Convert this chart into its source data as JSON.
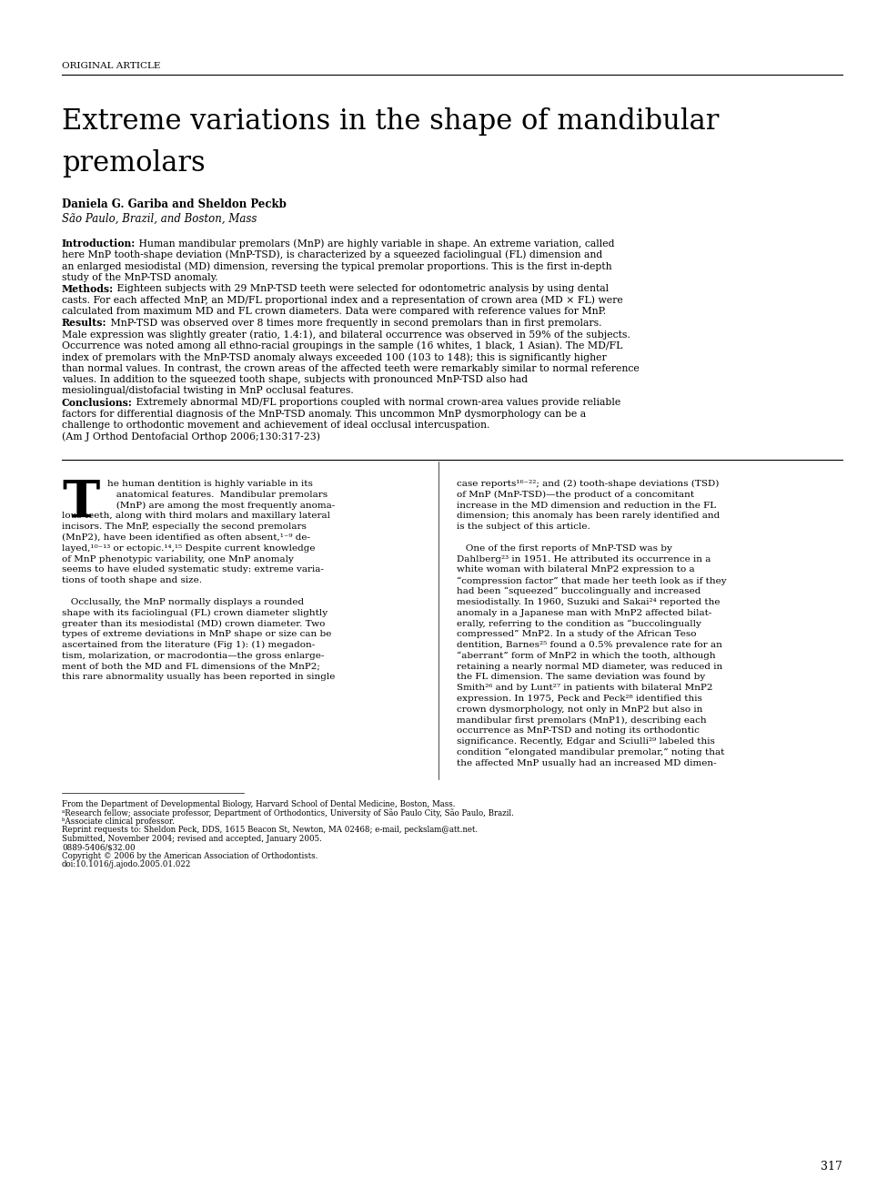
{
  "background_color": "#ffffff",
  "page_label": "ORIGINAL ARTICLE",
  "title_line1": "Extreme variations in the shape of mandibular",
  "title_line2": "premolars",
  "authors_bold": "Daniela G. Garib",
  "authors_super_a": "a",
  "authors_mid": " and Sheldon Peck",
  "authors_super_b": "b",
  "affiliation": "São Paulo, Brazil, and Boston, Mass",
  "abstract_intro_label": "Introduction:",
  "abstract_intro": "Human mandibular premolars (MnP) are highly variable in shape. An extreme variation, called here MnP tooth-shape deviation (MnP-TSD), is characterized by a squeezed faciolingual (FL) dimension and an enlarged mesiodistal (MD) dimension, reversing the typical premolar proportions. This is the first in-depth study of the MnP-TSD anomaly.",
  "abstract_methods_label": "Methods:",
  "abstract_methods": "Eighteen subjects with 29 MnP-TSD teeth were selected for odontometric analysis by using dental casts. For each affected MnP, an MD/FL proportional index and a representation of crown area (MD × FL) were calculated from maximum MD and FL crown diameters. Data were compared with reference values for MnP.",
  "abstract_results_label": "Results:",
  "abstract_results": "MnP-TSD was observed over 8 times more frequently in second premolars than in first premolars. Male expression was slightly greater (ratio, 1.4:1), and bilateral occurrence was observed in 59% of the subjects. Occurrence was noted among all ethno-racial groupings in the sample (16 whites, 1 black, 1 Asian). The MD/FL index of premolars with the MnP-TSD anomaly always exceeded 100 (103 to 148); this is significantly higher than normal values. In contrast, the crown areas of the affected teeth were remarkably similar to normal reference values. In addition to the squeezed tooth shape, subjects with pronounced MnP-TSD also had mesiolingual/distofacial twisting in MnP occlusal features.",
  "abstract_conclusions_label": "Conclusions:",
  "abstract_conclusions": "Extremely abnormal MD/FL proportions coupled with normal crown-area values provide reliable factors for differential diagnosis of the MnP-TSD anomaly. This uncommon MnP dysmorphology can be a challenge to orthodontic movement and achievement of ideal occlusal intercuspation. (Am J Orthod Dentofacial Orthop 2006;130:317-23)",
  "col1_lines": [
    "he human dentition is highly variable in its",
    "   anatomical features.  Mandibular premolars",
    "   (MnP) are among the most frequently anoma-",
    "lous teeth, along with third molars and maxillary lateral",
    "incisors. The MnP, especially the second premolars",
    "(MnP2), have been identified as often absent,¹⁻⁹ de-",
    "layed,¹⁰⁻¹³ or ectopic.¹⁴,¹⁵ Despite current knowledge",
    "of MnP phenotypic variability, one MnP anomaly",
    "seems to have eluded systematic study: extreme varia-",
    "tions of tooth shape and size.",
    "",
    "   Occlusally, the MnP normally displays a rounded",
    "shape with its faciolingual (FL) crown diameter slightly",
    "greater than its mesiodistal (MD) crown diameter. Two",
    "types of extreme deviations in MnP shape or size can be",
    "ascertained from the literature (Fig 1): (1) megadon-",
    "tism, molarization, or macrodontia—the gross enlarge-",
    "ment of both the MD and FL dimensions of the MnP2;",
    "this rare abnormality usually has been reported in single"
  ],
  "col2_lines": [
    "case reports¹⁶⁻²²; and (2) tooth-shape deviations (TSD)",
    "of MnP (MnP-TSD)—the product of a concomitant",
    "increase in the MD dimension and reduction in the FL",
    "dimension; this anomaly has been rarely identified and",
    "is the subject of this article.",
    "",
    "   One of the first reports of MnP-TSD was by",
    "Dahlberg²³ in 1951. He attributed its occurrence in a",
    "white woman with bilateral MnP2 expression to a",
    "“compression factor” that made her teeth look as if they",
    "had been “squeezed” buccolingually and increased",
    "mesiodistally. In 1960, Suzuki and Sakai²⁴ reported the",
    "anomaly in a Japanese man with MnP2 affected bilat-",
    "erally, referring to the condition as “buccolingually",
    "compressed” MnP2. In a study of the African Teso",
    "dentition, Barnes²⁵ found a 0.5% prevalence rate for an",
    "“aberrant” form of MnP2 in which the tooth, although",
    "retaining a nearly normal MD diameter, was reduced in",
    "the FL dimension. The same deviation was found by",
    "Smith²⁶ and by Lunt²⁷ in patients with bilateral MnP2",
    "expression. In 1975, Peck and Peck²⁸ identified this",
    "crown dysmorphology, not only in MnP2 but also in",
    "mandibular first premolars (MnP1), describing each",
    "occurrence as MnP-TSD and noting its orthodontic",
    "significance. Recently, Edgar and Sciulli²⁹ labeled this",
    "condition “elongated mandibular premolar,” noting that",
    "the affected MnP usually had an increased MD dimen-"
  ],
  "footnote_lines": [
    "From the Department of Developmental Biology, Harvard School of Dental Medicine, Boston, Mass.",
    "ᵃResearch fellow; associate professor, Department of Orthodontics, University of São Paulo City, São Paulo, Brazil.",
    "ᵇAssociate clinical professor.",
    "Reprint requests to: Sheldon Peck, DDS, 1615 Beacon St, Newton, MA 02468; e-mail, peckslam@att.net.",
    "Submitted, November 2004; revised and accepted, January 2005.",
    "0889-5406/$32.00",
    "Copyright © 2006 by the American Association of Orthodontists.",
    "doi:10.1016/j.ajodo.2005.01.022"
  ],
  "page_number": "317"
}
